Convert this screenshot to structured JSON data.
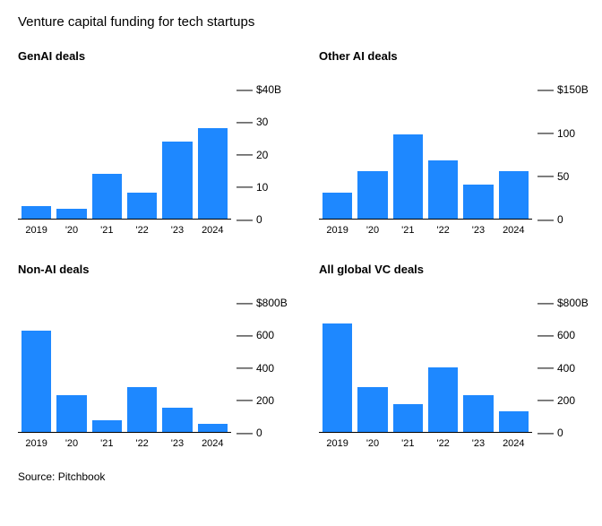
{
  "title": "Venture capital funding for tech startups",
  "source": "Source: Pitchbook",
  "bar_color": "#1e88ff",
  "text_color": "#000000",
  "background_color": "#ffffff",
  "title_fontsize": 15,
  "chart_title_fontsize": 13,
  "axis_fontsize": 12,
  "x_labels": [
    "2019",
    "'20",
    "'21",
    "'22",
    "'23",
    "2024"
  ],
  "charts": [
    {
      "title": "GenAI deals",
      "type": "bar",
      "ymax": 40,
      "y_ticks": [
        {
          "v": 40,
          "label": "$40B"
        },
        {
          "v": 30,
          "label": "30"
        },
        {
          "v": 20,
          "label": "20"
        },
        {
          "v": 10,
          "label": "10"
        },
        {
          "v": 0,
          "label": "0"
        }
      ],
      "values": [
        4,
        3,
        14,
        8,
        24,
        28
      ]
    },
    {
      "title": "Other AI deals",
      "type": "bar",
      "ymax": 150,
      "y_ticks": [
        {
          "v": 150,
          "label": "$150B"
        },
        {
          "v": 100,
          "label": "100"
        },
        {
          "v": 50,
          "label": "50"
        },
        {
          "v": 0,
          "label": "0"
        }
      ],
      "values": [
        30,
        55,
        98,
        68,
        40,
        55
      ]
    },
    {
      "title": "Non-AI deals",
      "type": "bar",
      "ymax": 800,
      "y_ticks": [
        {
          "v": 800,
          "label": "$800B"
        },
        {
          "v": 600,
          "label": "600"
        },
        {
          "v": 400,
          "label": "400"
        },
        {
          "v": 200,
          "label": "200"
        },
        {
          "v": 0,
          "label": "0"
        }
      ],
      "values": [
        630,
        230,
        70,
        280,
        150,
        50
      ]
    },
    {
      "title": "All global VC deals",
      "type": "bar",
      "ymax": 800,
      "y_ticks": [
        {
          "v": 800,
          "label": "$800B"
        },
        {
          "v": 600,
          "label": "600"
        },
        {
          "v": 400,
          "label": "400"
        },
        {
          "v": 200,
          "label": "200"
        },
        {
          "v": 0,
          "label": "0"
        }
      ],
      "values": [
        670,
        280,
        170,
        400,
        230,
        130
      ]
    }
  ]
}
